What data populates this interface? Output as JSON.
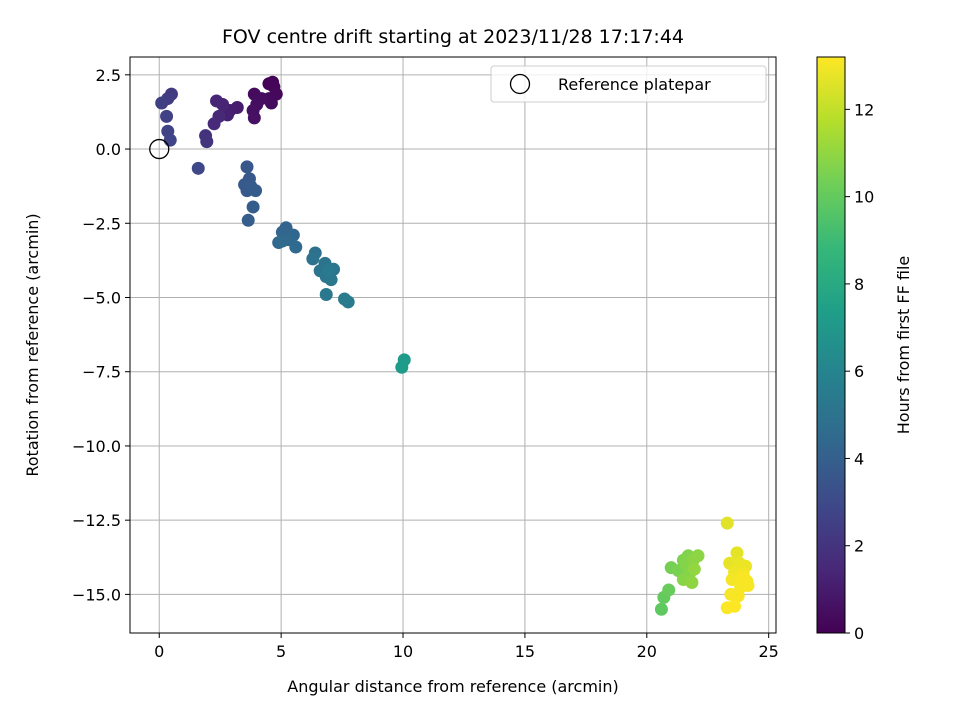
{
  "chart_data": {
    "type": "scatter",
    "title": "FOV centre drift starting at 2023/11/28 17:17:44",
    "xlabel": "Angular distance from reference (arcmin)",
    "ylabel": "Rotation from reference (arcmin)",
    "xlim": [
      -1.2,
      25.3
    ],
    "ylim": [
      -16.3,
      3.1
    ],
    "xticks": [
      0,
      5,
      10,
      15,
      20,
      25
    ],
    "xtick_labels": [
      "0",
      "5",
      "10",
      "15",
      "20",
      "25"
    ],
    "yticks": [
      2.5,
      0.0,
      -2.5,
      -5.0,
      -7.5,
      -10.0,
      -12.5,
      -15.0
    ],
    "ytick_labels": [
      "2.5",
      "0.0",
      "−2.5",
      "−5.0",
      "−7.5",
      "−10.0",
      "−12.5",
      "−15.0"
    ],
    "grid": true,
    "colormap": "viridis",
    "colormap_stops": [
      "#440154",
      "#482878",
      "#3e4989",
      "#31688e",
      "#26828e",
      "#1f9e89",
      "#35b779",
      "#6ece58",
      "#b5de2b",
      "#fde725"
    ],
    "colorbar": {
      "label": "Hours from first FF file",
      "range": [
        0,
        13.2
      ],
      "ticks": [
        0,
        2,
        4,
        6,
        8,
        10,
        12
      ],
      "tick_labels": [
        "0",
        "2",
        "4",
        "6",
        "8",
        "10",
        "12"
      ]
    },
    "legend": {
      "location": "upper right",
      "entries": [
        "Reference platepar"
      ]
    },
    "reference_point": {
      "x": 0,
      "y": 0
    },
    "points": [
      {
        "x": 4.5,
        "y": 2.2,
        "hours": 0.1
      },
      {
        "x": 4.7,
        "y": 2.1,
        "hours": 0.2
      },
      {
        "x": 4.8,
        "y": 1.85,
        "hours": 0.25
      },
      {
        "x": 4.5,
        "y": 1.7,
        "hours": 0.3
      },
      {
        "x": 4.6,
        "y": 1.55,
        "hours": 0.35
      },
      {
        "x": 4.65,
        "y": 2.25,
        "hours": 0.15
      },
      {
        "x": 3.9,
        "y": 1.85,
        "hours": 0.4
      },
      {
        "x": 4.0,
        "y": 1.5,
        "hours": 0.5
      },
      {
        "x": 3.85,
        "y": 1.3,
        "hours": 0.55
      },
      {
        "x": 3.9,
        "y": 1.05,
        "hours": 0.6
      },
      {
        "x": 4.2,
        "y": 1.7,
        "hours": 0.45
      },
      {
        "x": 3.2,
        "y": 1.4,
        "hours": 1.0
      },
      {
        "x": 2.9,
        "y": 1.3,
        "hours": 1.1
      },
      {
        "x": 2.8,
        "y": 1.15,
        "hours": 1.2
      },
      {
        "x": 2.6,
        "y": 1.5,
        "hours": 1.3
      },
      {
        "x": 2.35,
        "y": 1.62,
        "hours": 1.4
      },
      {
        "x": 2.45,
        "y": 1.1,
        "hours": 1.5
      },
      {
        "x": 2.25,
        "y": 0.85,
        "hours": 1.6
      },
      {
        "x": 1.9,
        "y": 0.45,
        "hours": 1.9
      },
      {
        "x": 1.95,
        "y": 0.25,
        "hours": 2.0
      },
      {
        "x": 0.5,
        "y": 1.85,
        "hours": 2.3
      },
      {
        "x": 0.35,
        "y": 1.7,
        "hours": 2.4
      },
      {
        "x": 0.1,
        "y": 1.55,
        "hours": 2.5
      },
      {
        "x": 0.3,
        "y": 1.1,
        "hours": 2.6
      },
      {
        "x": 0.35,
        "y": 0.6,
        "hours": 2.7
      },
      {
        "x": 0.45,
        "y": 0.3,
        "hours": 2.75
      },
      {
        "x": 1.6,
        "y": -0.65,
        "hours": 2.9
      },
      {
        "x": 3.6,
        "y": -0.6,
        "hours": 3.6
      },
      {
        "x": 3.7,
        "y": -1.0,
        "hours": 3.65
      },
      {
        "x": 3.5,
        "y": -1.2,
        "hours": 3.7
      },
      {
        "x": 3.6,
        "y": -1.4,
        "hours": 3.75
      },
      {
        "x": 3.75,
        "y": -1.25,
        "hours": 3.8
      },
      {
        "x": 3.95,
        "y": -1.4,
        "hours": 3.85
      },
      {
        "x": 3.85,
        "y": -1.95,
        "hours": 3.9
      },
      {
        "x": 3.65,
        "y": -2.4,
        "hours": 3.95
      },
      {
        "x": 5.2,
        "y": -2.65,
        "hours": 4.2
      },
      {
        "x": 5.05,
        "y": -2.8,
        "hours": 4.3
      },
      {
        "x": 5.5,
        "y": -2.9,
        "hours": 4.35
      },
      {
        "x": 5.3,
        "y": -3.05,
        "hours": 4.4
      },
      {
        "x": 4.9,
        "y": -3.15,
        "hours": 4.45
      },
      {
        "x": 5.6,
        "y": -3.3,
        "hours": 4.5
      },
      {
        "x": 5.05,
        "y": -3.1,
        "hours": 4.55
      },
      {
        "x": 6.4,
        "y": -3.5,
        "hours": 4.9
      },
      {
        "x": 6.3,
        "y": -3.7,
        "hours": 5.0
      },
      {
        "x": 6.8,
        "y": -3.85,
        "hours": 5.05
      },
      {
        "x": 6.6,
        "y": -4.1,
        "hours": 5.1
      },
      {
        "x": 7.15,
        "y": -4.05,
        "hours": 5.15
      },
      {
        "x": 6.85,
        "y": -4.3,
        "hours": 5.2
      },
      {
        "x": 7.05,
        "y": -4.4,
        "hours": 5.25
      },
      {
        "x": 6.85,
        "y": -4.9,
        "hours": 5.3
      },
      {
        "x": 6.95,
        "y": -4.1,
        "hours": 5.35
      },
      {
        "x": 7.6,
        "y": -5.05,
        "hours": 5.5
      },
      {
        "x": 7.75,
        "y": -5.15,
        "hours": 5.55
      },
      {
        "x": 10.05,
        "y": -7.1,
        "hours": 7.2
      },
      {
        "x": 9.95,
        "y": -7.35,
        "hours": 7.25
      },
      {
        "x": 20.6,
        "y": -15.5,
        "hours": 9.9
      },
      {
        "x": 20.7,
        "y": -15.1,
        "hours": 10.0
      },
      {
        "x": 20.9,
        "y": -14.85,
        "hours": 10.1
      },
      {
        "x": 21.0,
        "y": -14.1,
        "hours": 10.4
      },
      {
        "x": 21.3,
        "y": -14.2,
        "hours": 10.5
      },
      {
        "x": 21.5,
        "y": -13.85,
        "hours": 10.6
      },
      {
        "x": 21.7,
        "y": -13.7,
        "hours": 10.65
      },
      {
        "x": 21.6,
        "y": -14.0,
        "hours": 10.7
      },
      {
        "x": 21.75,
        "y": -14.3,
        "hours": 10.75
      },
      {
        "x": 21.5,
        "y": -14.5,
        "hours": 10.8
      },
      {
        "x": 21.9,
        "y": -13.85,
        "hours": 10.85
      },
      {
        "x": 22.1,
        "y": -13.7,
        "hours": 10.9
      },
      {
        "x": 21.85,
        "y": -14.6,
        "hours": 10.95
      },
      {
        "x": 21.95,
        "y": -14.15,
        "hours": 11.0
      },
      {
        "x": 23.3,
        "y": -12.6,
        "hours": 12.6
      },
      {
        "x": 23.7,
        "y": -13.6,
        "hours": 12.7
      },
      {
        "x": 23.4,
        "y": -13.95,
        "hours": 12.75
      },
      {
        "x": 23.8,
        "y": -13.95,
        "hours": 12.8
      },
      {
        "x": 24.05,
        "y": -14.05,
        "hours": 12.85
      },
      {
        "x": 23.6,
        "y": -14.25,
        "hours": 12.9
      },
      {
        "x": 23.95,
        "y": -14.3,
        "hours": 12.95
      },
      {
        "x": 23.5,
        "y": -14.5,
        "hours": 13.0
      },
      {
        "x": 24.1,
        "y": -14.55,
        "hours": 13.0
      },
      {
        "x": 23.85,
        "y": -14.75,
        "hours": 13.05
      },
      {
        "x": 24.15,
        "y": -14.7,
        "hours": 13.1
      },
      {
        "x": 23.45,
        "y": -15.0,
        "hours": 13.05
      },
      {
        "x": 23.75,
        "y": -15.05,
        "hours": 13.1
      },
      {
        "x": 23.3,
        "y": -15.45,
        "hours": 13.15
      },
      {
        "x": 23.6,
        "y": -15.4,
        "hours": 13.2
      },
      {
        "x": 23.95,
        "y": -14.4,
        "hours": 13.1
      }
    ]
  }
}
